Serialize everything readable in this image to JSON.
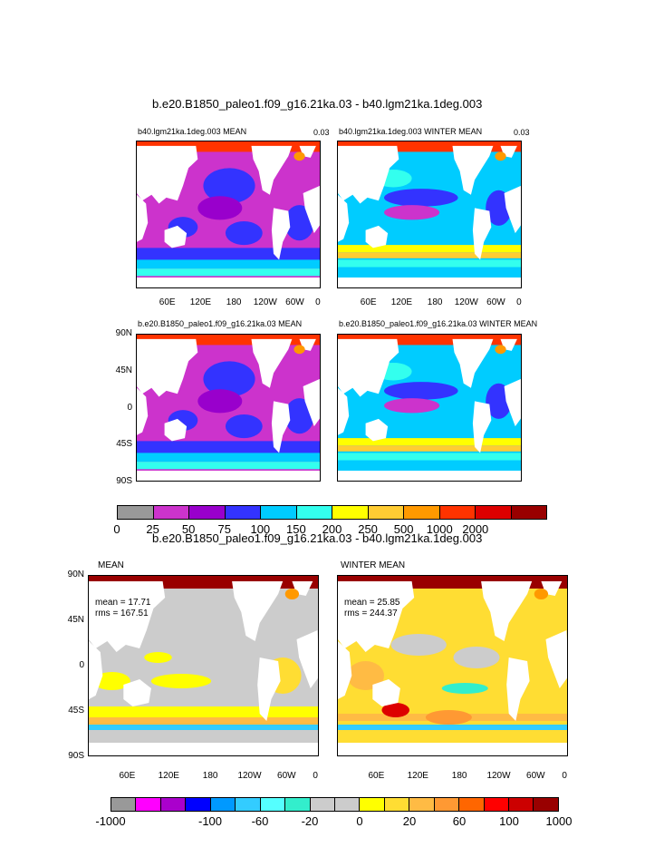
{
  "figure": {
    "top_title": "b.e20.B1850_paleo1.f09_g16.21ka.03 - b40.lgm21ka.1deg.003",
    "bottom_title": "b.e20.B1850_paleo1.f09_g16.21ka.03 - b40.lgm21ka.1deg.003"
  },
  "chart_data": [
    {
      "type": "heatmap",
      "panel": "top-left",
      "title": "b40.lgm21ka.1deg.003 MEAN",
      "corner_label": "0.03",
      "x_ticks": [
        "60E",
        "120E",
        "180",
        "120W",
        "60W",
        "0"
      ],
      "y_ticks": []
    },
    {
      "type": "heatmap",
      "panel": "top-right",
      "title": "b40.lgm21ka.1deg.003 WINTER MEAN",
      "corner_label": "0.03",
      "x_ticks": [
        "60E",
        "120E",
        "180",
        "120W",
        "60W",
        "0"
      ],
      "y_ticks": []
    },
    {
      "type": "heatmap",
      "panel": "mid-left",
      "title": "b.e20.B1850_paleo1.f09_g16.21ka.03 MEAN",
      "x_ticks": [],
      "y_ticks": [
        "90N",
        "45N",
        "0",
        "45S",
        "90S"
      ]
    },
    {
      "type": "heatmap",
      "panel": "mid-right",
      "title": "b.e20.B1850_paleo1.f09_g16.21ka.03 WINTER MEAN",
      "x_ticks": [],
      "y_ticks": []
    },
    {
      "type": "heatmap",
      "panel": "bottom-left",
      "title": "MEAN",
      "mean": "mean = 17.71",
      "rms": "rms = 167.51",
      "x_ticks": [
        "60E",
        "120E",
        "180",
        "120W",
        "60W",
        "0"
      ],
      "y_ticks": [
        "90N",
        "45N",
        "0",
        "45S",
        "90S"
      ]
    },
    {
      "type": "heatmap",
      "panel": "bottom-right",
      "title": "WINTER MEAN",
      "mean": "mean = 25.85",
      "rms": "rms = 244.37",
      "x_ticks": [
        "60E",
        "120E",
        "180",
        "120W",
        "60W",
        "0"
      ],
      "y_ticks": []
    }
  ],
  "colorbar_top": {
    "colors": [
      "#999999",
      "#cc33cc",
      "#9900cc",
      "#3333ff",
      "#00ccff",
      "#33ffee",
      "#ffff00",
      "#ffcc33",
      "#ff9900",
      "#ff3300",
      "#dd0000",
      "#990000"
    ],
    "labels": [
      "0",
      "25",
      "50",
      "75",
      "100",
      "150",
      "200",
      "250",
      "500",
      "1000",
      "2000"
    ]
  },
  "colorbar_bottom": {
    "colors": [
      "#999999",
      "#ff00ff",
      "#aa00cc",
      "#0000ff",
      "#0099ff",
      "#33ccff",
      "#55ffff",
      "#33eecc",
      "#cccccc",
      "#cccccc",
      "#ffff00",
      "#ffdd33",
      "#ffbb44",
      "#ff9933",
      "#ff6600",
      "#ff0000",
      "#cc0000",
      "#990000"
    ],
    "labels": [
      "-1000",
      "-100",
      "-60",
      "-20",
      "0",
      "20",
      "60",
      "100",
      "1000"
    ]
  },
  "colors": {
    "land": "#ffffff",
    "ocean_base": "#3333ff"
  }
}
